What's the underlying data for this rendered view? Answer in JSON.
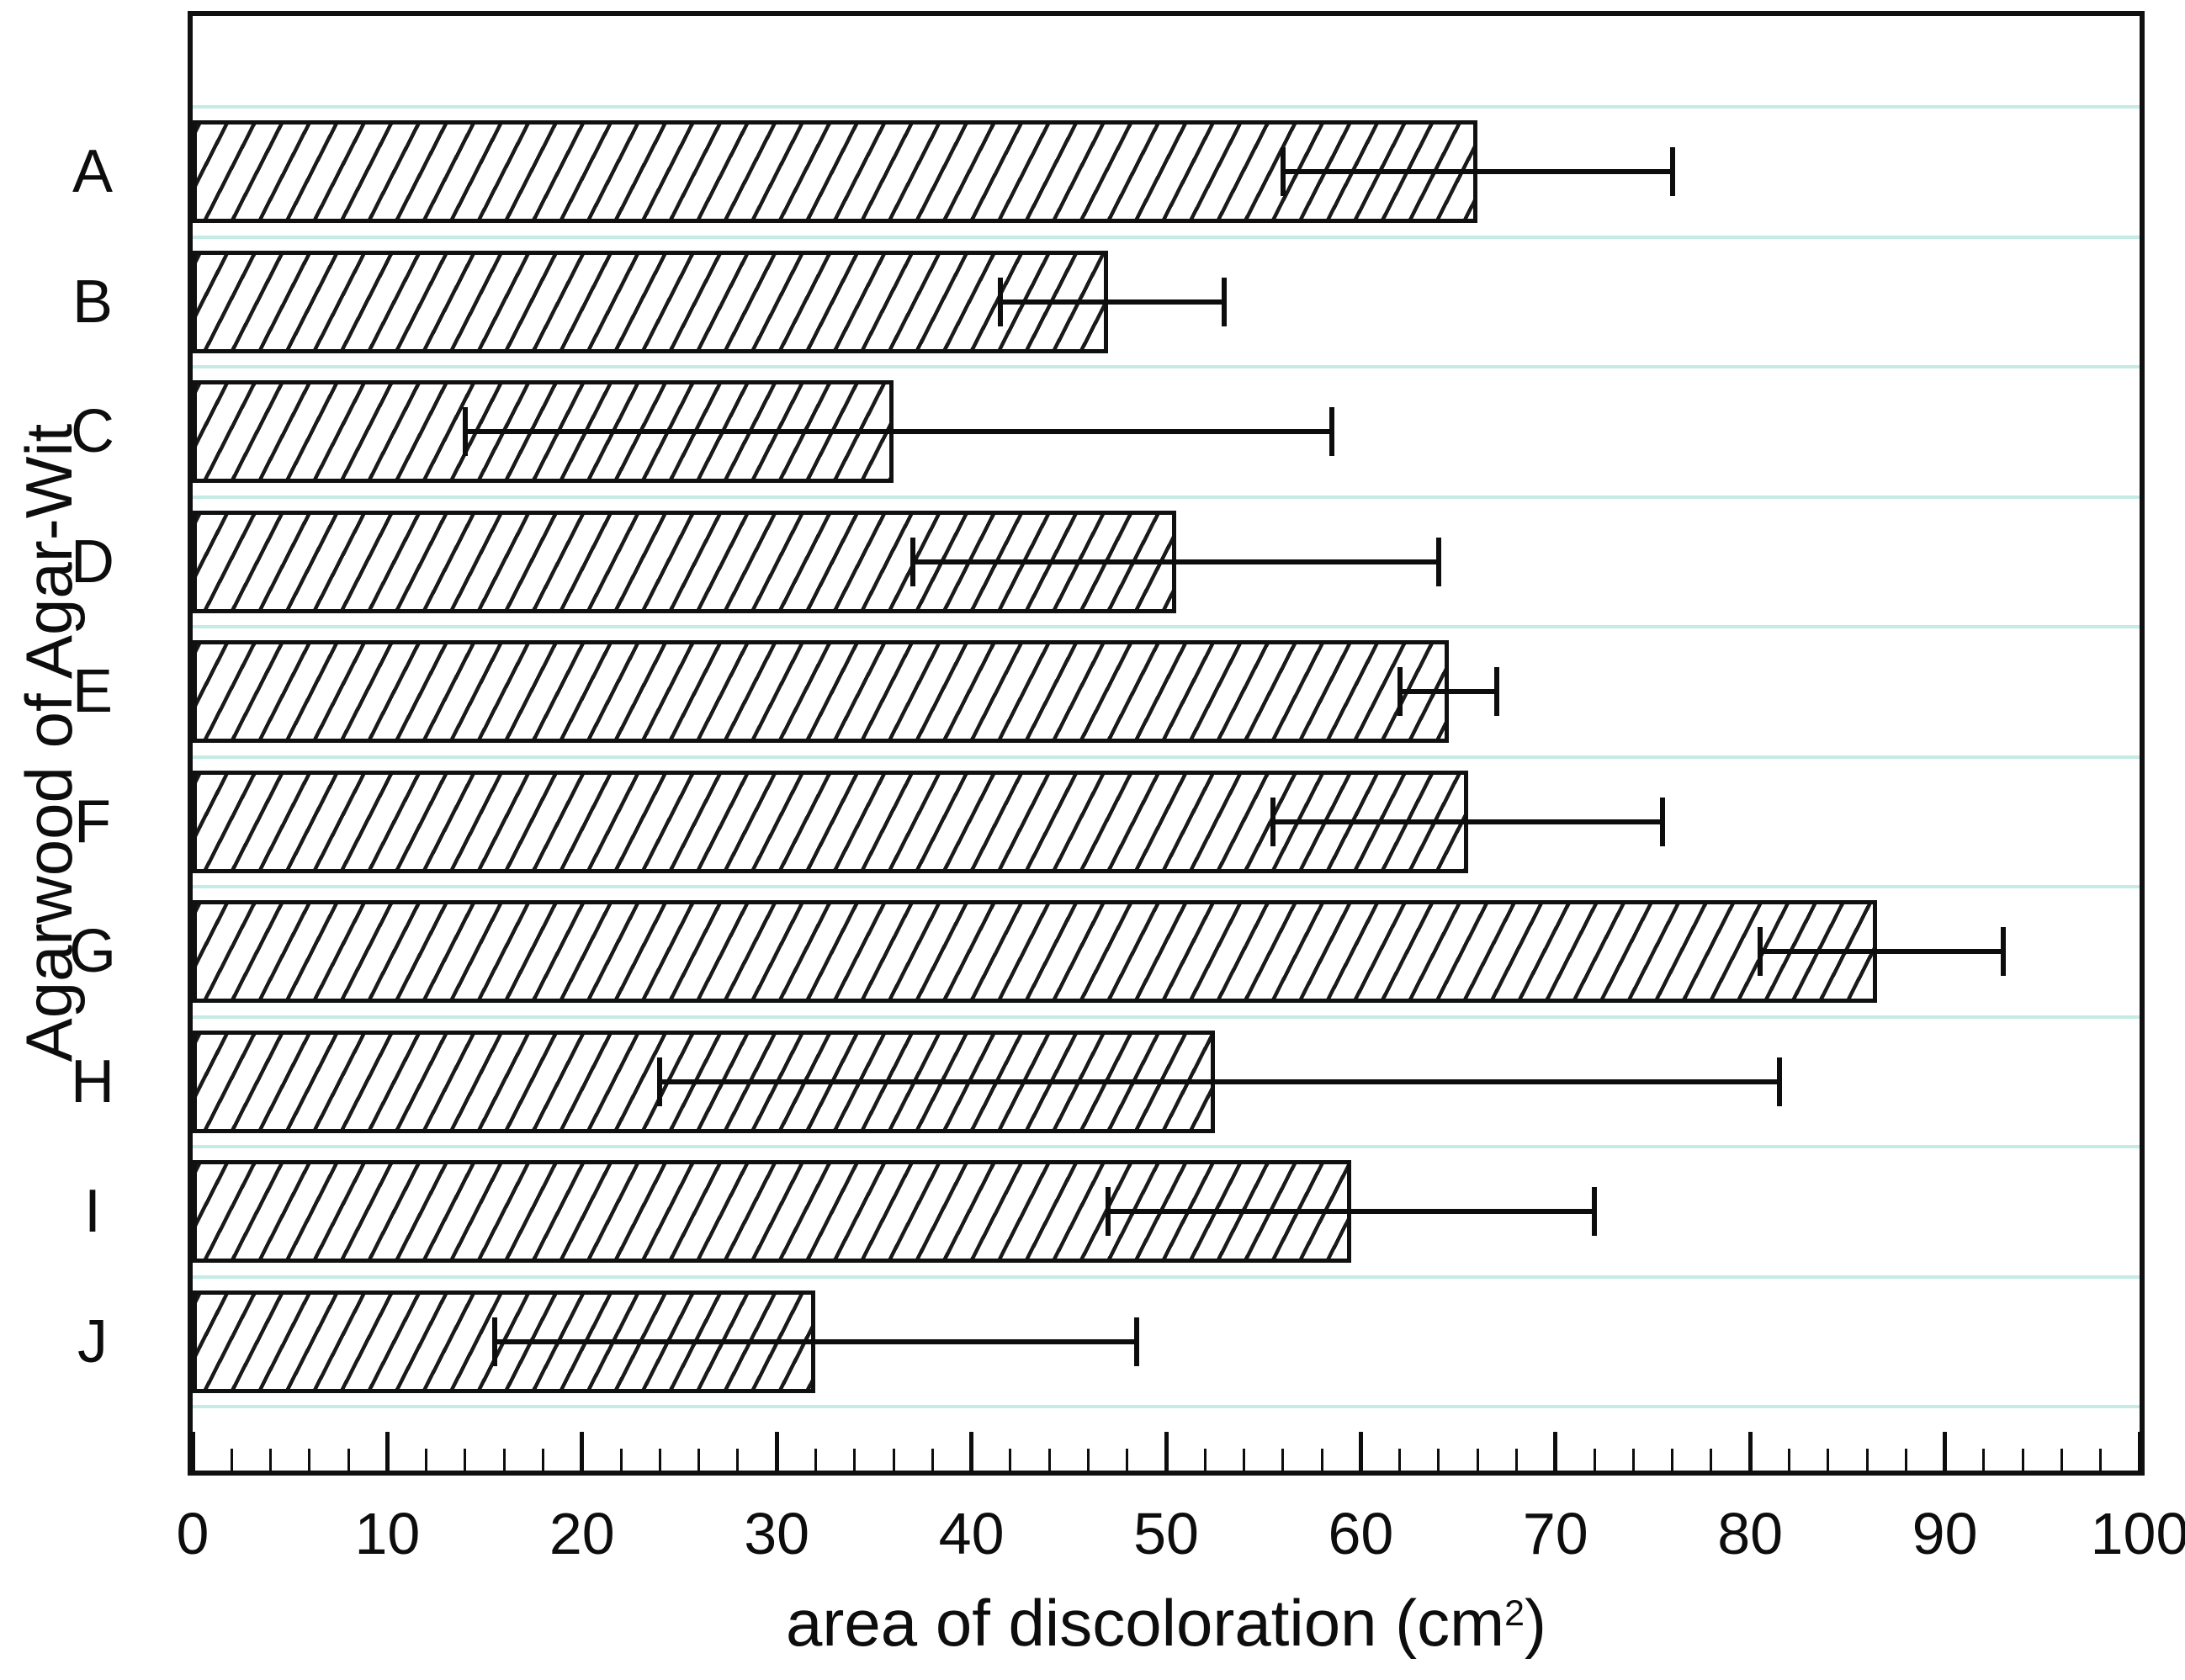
{
  "figure": {
    "background_color": "#ffffff",
    "plot_border_color": "#101010",
    "gridline_color": "#c4ebe4",
    "bar_fill_color": "#ffffff",
    "bar_hatch_color": "#1a1a1a",
    "error_bar_color": "#0d0d0d",
    "text_color": "#0d0d0d"
  },
  "chart_data": {
    "type": "bar",
    "orientation": "horizontal",
    "title": "",
    "xlabel_prefix": "area of discoloration (cm",
    "xlabel_superscript": "2",
    "xlabel_suffix": ")",
    "ylabel": "Agarwood of Agar-Wit",
    "categories": [
      "A",
      "B",
      "C",
      "D",
      "E",
      "F",
      "G",
      "H",
      "I",
      "J"
    ],
    "values": [
      66,
      47,
      36,
      50.5,
      64.5,
      65.5,
      86.5,
      52.5,
      59.5,
      32
    ],
    "error_low": [
      56,
      41.5,
      14,
      37,
      62,
      55.5,
      80.5,
      24,
      47,
      15.5
    ],
    "error_high": [
      76,
      53,
      58.5,
      64,
      67,
      75.5,
      93,
      81.5,
      72,
      48.5
    ],
    "xlim": [
      0,
      100
    ],
    "x_major_ticks": [
      0,
      10,
      20,
      30,
      40,
      50,
      60,
      70,
      80,
      90,
      100
    ],
    "x_minor_tick_step": 2,
    "grid": "light-cyan horizontal lines at category boundaries",
    "legend": "none",
    "bar_style": "white fill, black diagonal hatch, black border, black error bars with end caps"
  }
}
